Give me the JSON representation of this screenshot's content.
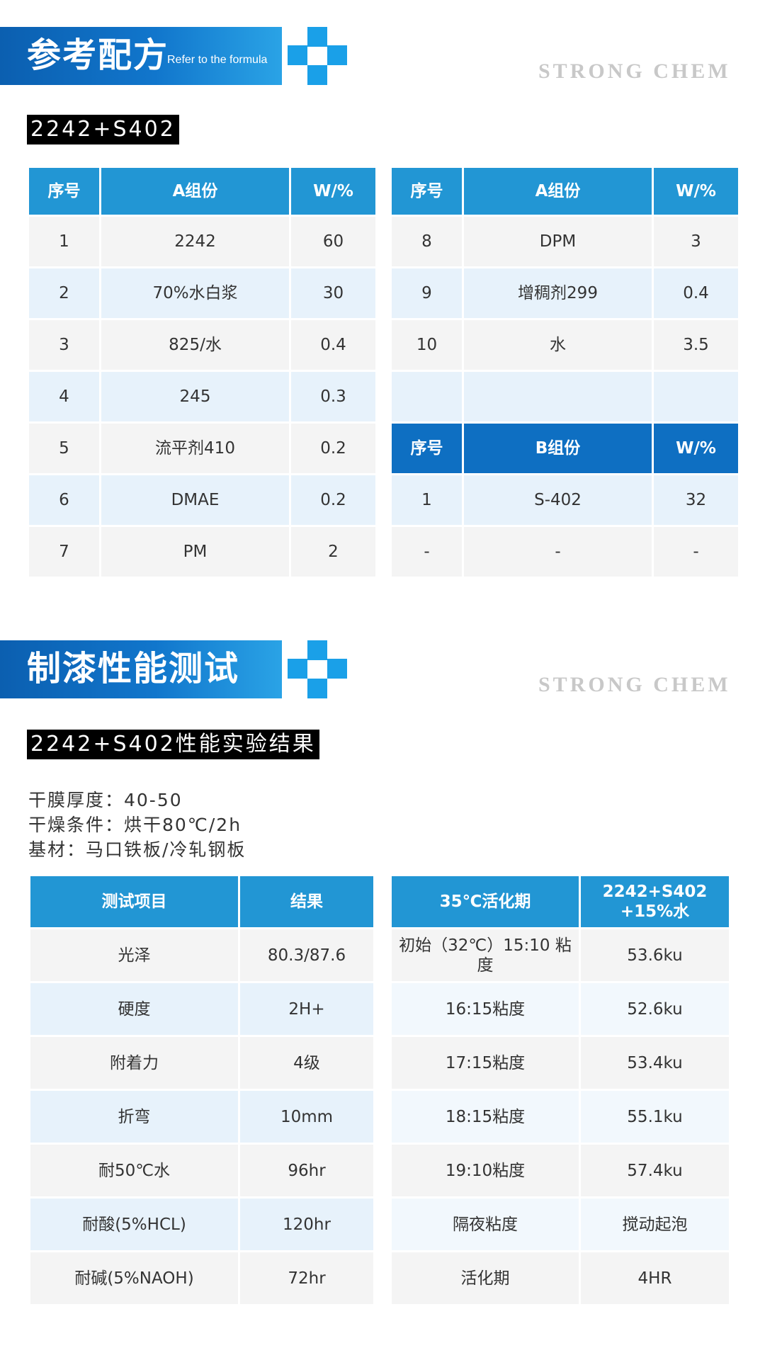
{
  "section1": {
    "title": "参考配方",
    "subtitle": "Refer to the formula",
    "brand": "STRONG CHEM",
    "tag": "2242+S402",
    "table_left": {
      "header": [
        "序号",
        "A组份",
        "W/%"
      ],
      "rows": [
        [
          "1",
          "2242",
          "60"
        ],
        [
          "2",
          "70%水白浆",
          "30"
        ],
        [
          "3",
          "825/水",
          "0.4"
        ],
        [
          "4",
          "245",
          "0.3"
        ],
        [
          "5",
          "流平剂410",
          "0.2"
        ],
        [
          "6",
          "DMAE",
          "0.2"
        ],
        [
          "7",
          "PM",
          "2"
        ]
      ]
    },
    "table_right": {
      "header": [
        "序号",
        "A组份",
        "W/%"
      ],
      "rows": [
        [
          "8",
          "DPM",
          "3"
        ],
        [
          "9",
          "增稠剂299",
          "0.4"
        ],
        [
          "10",
          "水",
          "3.5"
        ],
        [
          "",
          "",
          ""
        ]
      ],
      "header_b": [
        "序号",
        "B组份",
        "W/%"
      ],
      "rows_b": [
        [
          "1",
          "S-402",
          "32"
        ],
        [
          "-",
          "-",
          "-"
        ]
      ]
    }
  },
  "section2": {
    "title": "制漆性能测试",
    "brand": "STRONG CHEM",
    "tag": "2242+S402性能实验结果",
    "params": [
      "干膜厚度：40-50",
      "干燥条件：烘干80℃/2h",
      "基材：马口铁板/冷轧钢板"
    ],
    "table_left": {
      "header": [
        "测试项目",
        "结果"
      ],
      "rows": [
        [
          "光泽",
          "80.3/87.6"
        ],
        [
          "硬度",
          "2H+"
        ],
        [
          "附着力",
          "4级"
        ],
        [
          "折弯",
          "10mm"
        ],
        [
          "耐50℃水",
          "96hr"
        ],
        [
          "耐酸(5%HCL)",
          "120hr"
        ],
        [
          "耐碱(5%NAOH)",
          "72hr"
        ]
      ]
    },
    "table_right": {
      "header": [
        "35℃活化期",
        "2242+S402 +15%水"
      ],
      "rows": [
        [
          "初始（32℃）15:10 粘度",
          "53.6ku"
        ],
        [
          "16:15粘度",
          "52.6ku"
        ],
        [
          "17:15粘度",
          "53.4ku"
        ],
        [
          "18:15粘度",
          "55.1ku"
        ],
        [
          "19:10粘度",
          "57.4ku"
        ],
        [
          "隔夜粘度",
          "搅动起泡"
        ],
        [
          "活化期",
          "4HR"
        ]
      ]
    }
  }
}
